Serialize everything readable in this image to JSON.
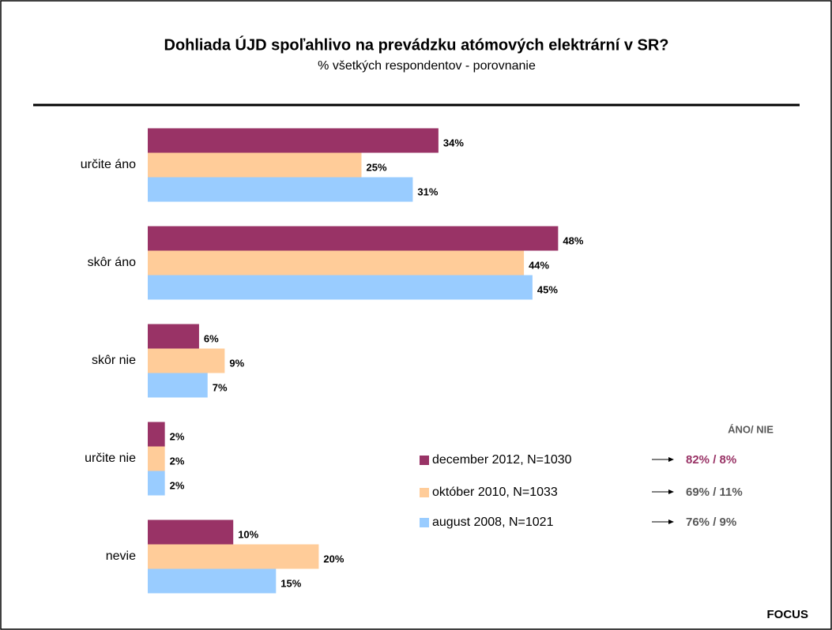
{
  "chart_data": {
    "type": "bar",
    "orientation": "horizontal",
    "title": "Dohliada ÚJD spoľahlivo na prevádzku atómových elektrární v SR?",
    "subtitle": "% všetkých respondentov - porovnanie",
    "categories": [
      "určite áno",
      "skôr áno",
      "skôr nie",
      "určite nie",
      "nevie"
    ],
    "series": [
      {
        "name": "december 2012, N=1030",
        "color": "#993366",
        "values": [
          34,
          48,
          6,
          2,
          10
        ],
        "value_labels": [
          "34%",
          "48%",
          "6%",
          "2%",
          "10%"
        ]
      },
      {
        "name": "október 2010, N=1033",
        "color": "#FFCC99",
        "values": [
          25,
          44,
          9,
          2,
          20
        ],
        "value_labels": [
          "25%",
          "44%",
          "9%",
          "2%",
          "20%"
        ]
      },
      {
        "name": "august 2008, N=1021",
        "color": "#99CCFF",
        "values": [
          31,
          45,
          7,
          2,
          15
        ],
        "value_labels": [
          "31%",
          "45%",
          "7%",
          "2%",
          "15%"
        ]
      }
    ],
    "side_header": "ÁNO/ NIE",
    "side_labels": [
      "82% / 8%",
      "69% / 11%",
      "76% / 9%"
    ],
    "side_label_colors": [
      "#993366",
      "#595959",
      "#595959"
    ],
    "source": "FOCUS"
  }
}
